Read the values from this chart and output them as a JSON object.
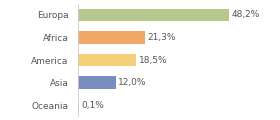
{
  "categories": [
    "Europa",
    "Africa",
    "America",
    "Asia",
    "Oceania"
  ],
  "values": [
    48.2,
    21.3,
    18.5,
    12.0,
    0.1
  ],
  "labels": [
    "48,2%",
    "21,3%",
    "18,5%",
    "12,0%",
    "0,1%"
  ],
  "bar_colors": [
    "#b5c98e",
    "#f0a868",
    "#f5d07a",
    "#7a8dc0",
    "#aec6e8"
  ],
  "background_color": "#ffffff",
  "xlim": [
    0,
    62
  ],
  "label_fontsize": 6.5,
  "tick_fontsize": 6.5,
  "bar_height": 0.55,
  "left_spine_color": "#cccccc"
}
